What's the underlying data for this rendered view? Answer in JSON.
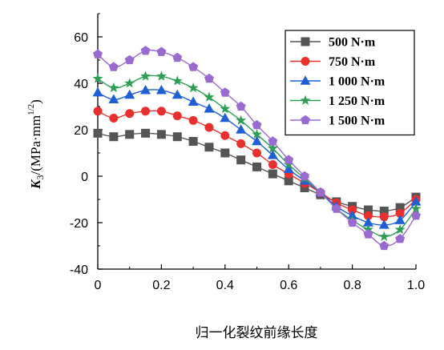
{
  "chart_data": {
    "type": "line",
    "xlabel": "归一化裂纹前缘长度",
    "ylabel": "K₃/(MPa·mm^1/2)",
    "ylabel_main": "K",
    "ylabel_sub": "3",
    "ylabel_unit": "/(MPa·mm",
    "ylabel_exp": "1/2",
    "ylabel_close": ")",
    "xlim": [
      0,
      1.0
    ],
    "ylim": [
      -40,
      70
    ],
    "xticks": [
      0,
      0.2,
      0.4,
      0.6,
      0.8,
      1.0
    ],
    "xtick_labels": [
      "0",
      "0.2",
      "0.4",
      "0.6",
      "0.8",
      "1.0"
    ],
    "yticks": [
      -40,
      -20,
      0,
      20,
      40,
      60
    ],
    "ytick_labels": [
      "-40",
      "-20",
      "0",
      "20",
      "40",
      "60"
    ],
    "grid": false,
    "legend_position": "top-right",
    "x": [
      0,
      0.05,
      0.1,
      0.15,
      0.2,
      0.25,
      0.3,
      0.35,
      0.4,
      0.45,
      0.5,
      0.55,
      0.6,
      0.65,
      0.7,
      0.75,
      0.8,
      0.85,
      0.9,
      0.95,
      1.0
    ],
    "series": [
      {
        "name": "500 N·m",
        "color": "#555555",
        "marker": "square",
        "values": [
          18.5,
          17,
          18,
          18.5,
          18,
          17,
          15,
          12.5,
          10,
          7,
          4,
          1,
          -2,
          -5,
          -8,
          -11,
          -13,
          -14.5,
          -15,
          -13.5,
          -9
        ]
      },
      {
        "name": "750 N·m",
        "color": "#e8312f",
        "marker": "circle",
        "values": [
          28,
          25,
          27,
          28,
          28,
          26,
          24,
          21,
          17.5,
          14,
          10,
          5,
          1,
          -3,
          -7,
          -11.5,
          -14.5,
          -17,
          -17.5,
          -16,
          -10
        ]
      },
      {
        "name": "1 000 N·m",
        "color": "#1e5fd6",
        "marker": "triangle",
        "values": [
          36,
          33,
          35,
          37,
          37,
          35,
          32,
          29,
          25,
          20,
          15,
          9,
          3,
          -2,
          -7,
          -13,
          -17,
          -20,
          -21,
          -19,
          -11
        ]
      },
      {
        "name": "1 250 N·m",
        "color": "#2e9e55",
        "marker": "star",
        "values": [
          42,
          38,
          40,
          43,
          43,
          41,
          38,
          34,
          29,
          24,
          18,
          12,
          5,
          -1,
          -7,
          -14,
          -19,
          -23,
          -26,
          -23,
          -14
        ]
      },
      {
        "name": "1 500 N·m",
        "color": "#9a6ad0",
        "marker": "pentagon",
        "values": [
          52.5,
          47,
          50,
          54,
          53.5,
          51,
          47,
          42,
          36,
          30,
          22,
          15,
          7,
          0,
          -7,
          -14,
          -20,
          -25,
          -30,
          -27,
          -17
        ]
      }
    ]
  }
}
